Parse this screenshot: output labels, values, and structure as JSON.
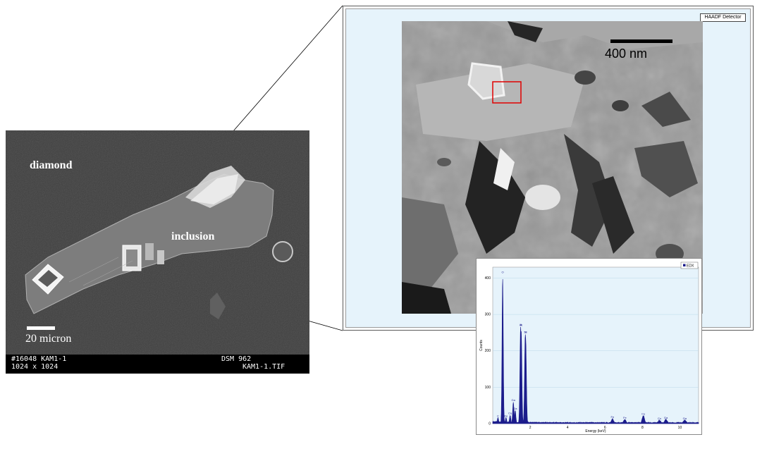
{
  "sem": {
    "label_diamond": "diamond",
    "label_inclusion": "inclusion",
    "scale_bar_label": "20 micron",
    "footer": {
      "line1_left": "#16048   KAM1-1",
      "line2_left": "1024 x 1024",
      "line1_right": "DSM 962",
      "line2_right": "KAM1-1.TIF"
    }
  },
  "haadf": {
    "detector_label": "HAADF Detector",
    "scale_bar_label": "400 nm"
  },
  "eds": {
    "legend": "EDX",
    "chart_data": {
      "type": "line",
      "title": "",
      "xlabel": "Energy (keV)",
      "ylabel": "Counts",
      "xlim": [
        0,
        11
      ],
      "ylim": [
        0,
        430
      ],
      "x_ticks": [
        2,
        4,
        6,
        8,
        10
      ],
      "y_ticks": [
        0,
        100,
        200,
        300,
        400
      ],
      "grid": true,
      "legend_position": "top-right",
      "series_color": "#1c1c8c",
      "peaks": [
        {
          "label": "C",
          "x": 0.28,
          "y": 15
        },
        {
          "label": "O",
          "x": 0.53,
          "y": 400
        },
        {
          "label": "Ga",
          "x": 1.1,
          "y": 58
        },
        {
          "label": "Ga",
          "x": 1.2,
          "y": 35
        },
        {
          "label": "Cu",
          "x": 0.93,
          "y": 22
        },
        {
          "label": "Fe",
          "x": 0.71,
          "y": 15
        },
        {
          "label": "Al",
          "x": 1.49,
          "y": 265
        },
        {
          "label": "Al",
          "x": 1.52,
          "y": 255
        },
        {
          "label": "Si",
          "x": 1.74,
          "y": 245
        },
        {
          "label": "Si",
          "x": 1.76,
          "y": 235
        },
        {
          "label": "Fe",
          "x": 6.4,
          "y": 12
        },
        {
          "label": "Fe",
          "x": 7.06,
          "y": 10
        },
        {
          "label": "Cu",
          "x": 8.05,
          "y": 20
        },
        {
          "label": "Ga",
          "x": 9.25,
          "y": 10
        },
        {
          "label": "Cu",
          "x": 8.91,
          "y": 8
        },
        {
          "label": "Ga",
          "x": 10.26,
          "y": 8
        }
      ]
    }
  }
}
